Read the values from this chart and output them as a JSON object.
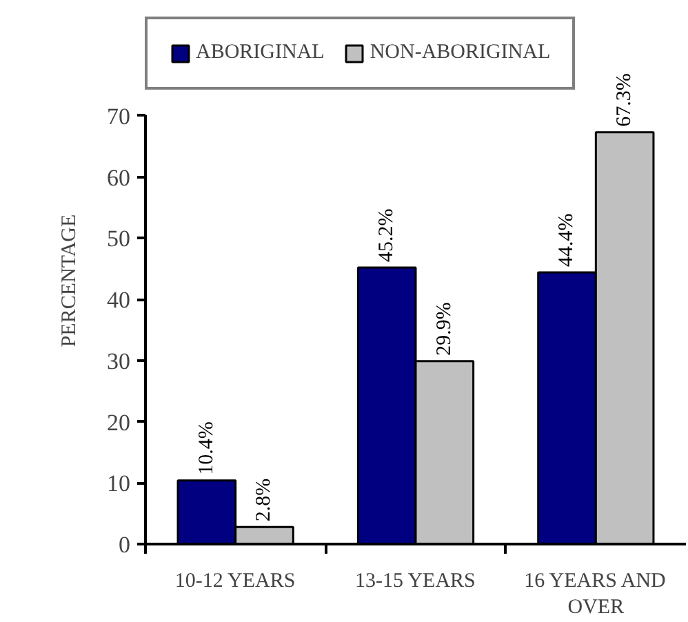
{
  "chart_data": {
    "type": "bar",
    "categories": [
      "10-12 YEARS",
      "13-15 YEARS",
      "16 YEARS AND OVER"
    ],
    "series": [
      {
        "name": "ABORIGINAL",
        "color": "#000080",
        "values": [
          10.4,
          45.2,
          44.4
        ],
        "value_labels": [
          "10.4%",
          "45.2%",
          "44.4%"
        ]
      },
      {
        "name": "NON-ABORIGINAL",
        "color": "#c0c0c0",
        "values": [
          2.8,
          29.9,
          67.3
        ],
        "value_labels": [
          "2.8%",
          "29.9%",
          "67.3%"
        ]
      }
    ],
    "ylabel": "PERCENTAGE",
    "ylim": [
      0,
      70
    ],
    "yticks": [
      0,
      10,
      20,
      30,
      40,
      50,
      60,
      70
    ],
    "grid": false,
    "legend": "top"
  }
}
